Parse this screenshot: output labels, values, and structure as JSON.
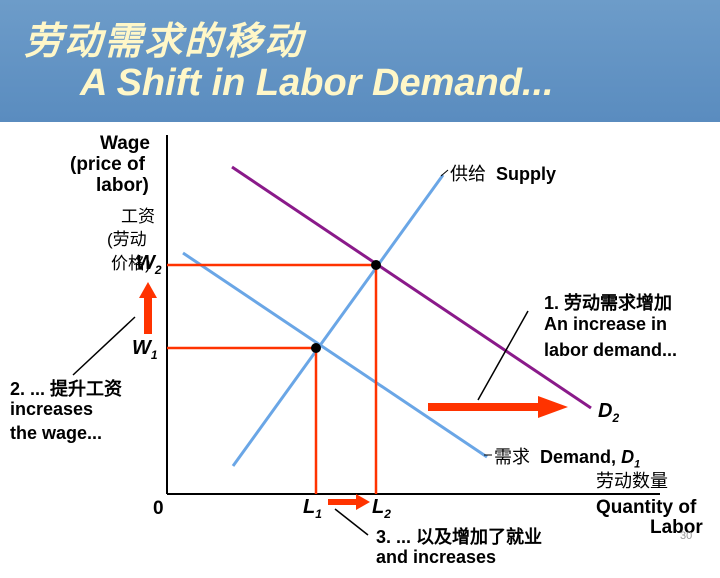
{
  "header": {
    "title_cn": "劳动需求的移动",
    "title_en": "A Shift in Labor Demand..."
  },
  "axes": {
    "y_label_line1": "Wage",
    "y_label_line2": "(price of",
    "y_label_line3": "labor)",
    "y_label_cn1": "工资",
    "y_label_cn2": "(劳动",
    "y_label_cn3": "价格)",
    "origin": "0",
    "x_label_line1": "Quantity of",
    "x_label_line2": "Labor"
  },
  "curves": {
    "supply_cn": "供给",
    "supply_en": "Supply",
    "demand_cn": "需求",
    "demand_en": "Demand,",
    "demand_sym": "D",
    "demand_sub": "1",
    "demand_cn2": "劳动数量",
    "d2_sym": "D",
    "d2_sub": "2"
  },
  "points": {
    "w1": "W",
    "w1_sub": "1",
    "w2": "W",
    "w2_sub": "2",
    "l1": "L",
    "l1_sub": "1",
    "l2": "L",
    "l2_sub": "2"
  },
  "annotations": {
    "a1_line1": "1. 劳动需求增加",
    "a1_line2": "An increase in",
    "a1_line3": "labor demand...",
    "a2_line1": "2. ... 提升工资",
    "a2_line2": "increases",
    "a2_line3": "the wage...",
    "a3_line1": "3. ... 以及增加了就业",
    "a3_line2": "and increases"
  },
  "page_number": "30",
  "colors": {
    "header_bg": "#5a8cbf",
    "title_text": "#fff7c8",
    "supply": "#6aa6e6",
    "demand1": "#6aa6e6",
    "demand2": "#8a1a8a",
    "guides": "#ff3300",
    "arrows": "#ff3300"
  }
}
